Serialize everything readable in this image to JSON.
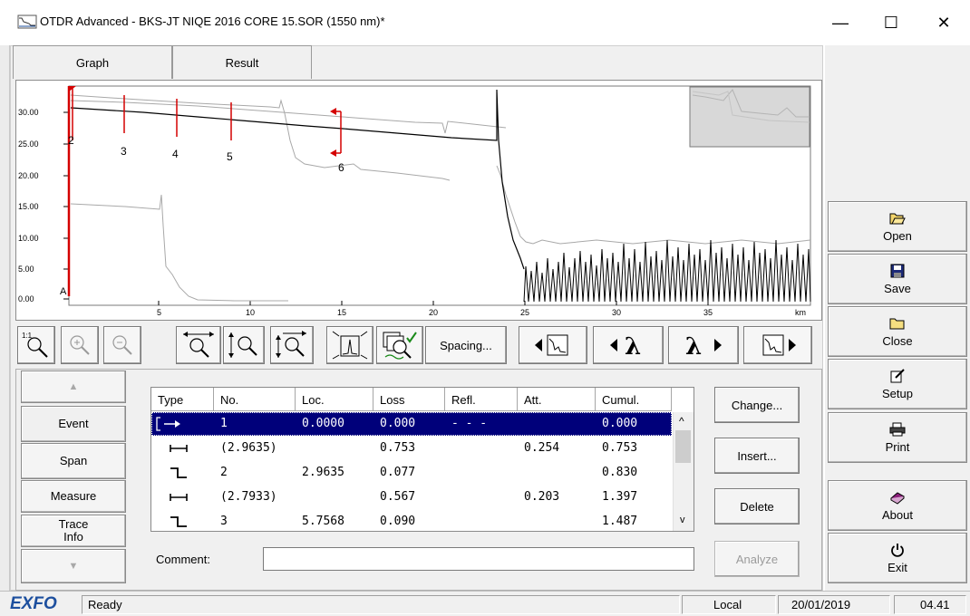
{
  "window": {
    "title": "OTDR Advanced - BKS-JT NIQE 2016 CORE 15.SOR (1550 nm)*",
    "minimize_glyph": "—",
    "maximize_glyph": "☐",
    "close_glyph": "✕"
  },
  "tabs": [
    {
      "label": "Graph",
      "selected": true
    },
    {
      "label": "Result",
      "selected": false
    }
  ],
  "graph": {
    "y_ticks": [
      "30.00",
      "25.00",
      "20.00",
      "15.00",
      "10.00",
      "5.00",
      "0.00"
    ],
    "x_ticks": [
      "5",
      "10",
      "15",
      "20",
      "25",
      "30",
      "35"
    ],
    "x_unit": "km",
    "marker_A": "A",
    "event_markers": [
      "2",
      "3",
      "4",
      "5",
      "6"
    ],
    "colors": {
      "trace": "#000000",
      "reference_trace": "#a8a8a8",
      "markers": "#d40000",
      "overview_fill": "#d8d8d8"
    }
  },
  "toolbar": {
    "zoom_1to1": "1:1",
    "spacing_label": "Spacing...",
    "lambda_prev": "λ",
    "lambda_next": "λ",
    "icons": [
      "zoom-fit-icon",
      "zoom-in-icon",
      "zoom-out-icon",
      "zoom-horizontal-icon",
      "zoom-vertical-icon",
      "zoom-both-icon",
      "zoom-event-icon",
      "zoom-overview-icon",
      "previous-event-icon",
      "previous-wavelength-icon",
      "next-wavelength-icon",
      "next-event-icon"
    ]
  },
  "side_nav": {
    "up_arrow": "▲",
    "down_arrow": "▼",
    "items": [
      "Event",
      "Span",
      "Measure",
      "Trace Info"
    ],
    "selected": "Event"
  },
  "events_table": {
    "columns": [
      "Type",
      "No.",
      "Loc.",
      "Loss",
      "Refl.",
      "Att.",
      "Cumul."
    ],
    "rows": [
      {
        "type": "launch",
        "no": "1",
        "loc": "0.0000",
        "loss": "0.000",
        "refl": "- - -",
        "att": "",
        "cumul": "0.000",
        "selected": true
      },
      {
        "type": "span",
        "no": "(2.9635)",
        "loc": "",
        "loss": "0.753",
        "refl": "",
        "att": "0.254",
        "cumul": "0.753",
        "selected": false
      },
      {
        "type": "splice",
        "no": "2",
        "loc": "2.9635",
        "loss": "0.077",
        "refl": "",
        "att": "",
        "cumul": "0.830",
        "selected": false
      },
      {
        "type": "span",
        "no": "(2.7933)",
        "loc": "",
        "loss": "0.567",
        "refl": "",
        "att": "0.203",
        "cumul": "1.397",
        "selected": false
      },
      {
        "type": "splice",
        "no": "3",
        "loc": "5.7568",
        "loss": "0.090",
        "refl": "",
        "att": "",
        "cumul": "1.487",
        "selected": false
      }
    ],
    "scroll_up": "^",
    "scroll_down": "v"
  },
  "actions": {
    "change": "Change...",
    "insert": "Insert...",
    "delete": "Delete",
    "analyze": "Analyze"
  },
  "comment": {
    "label": "Comment:",
    "value": ""
  },
  "right_panel": [
    {
      "label": "Open",
      "icon": "open-folder-icon"
    },
    {
      "label": "Save",
      "icon": "floppy-disk-icon"
    },
    {
      "label": "Close",
      "icon": "folder-icon"
    },
    {
      "label": "Setup",
      "icon": "edit-icon"
    },
    {
      "label": "Print",
      "icon": "printer-icon"
    },
    {
      "label": "About",
      "icon": "book-icon"
    },
    {
      "label": "Exit",
      "icon": "power-icon"
    }
  ],
  "status_bar": {
    "logo": "EXFO",
    "status": "Ready",
    "mode": "Local",
    "date": "20/01/2019",
    "time": "04.41"
  }
}
